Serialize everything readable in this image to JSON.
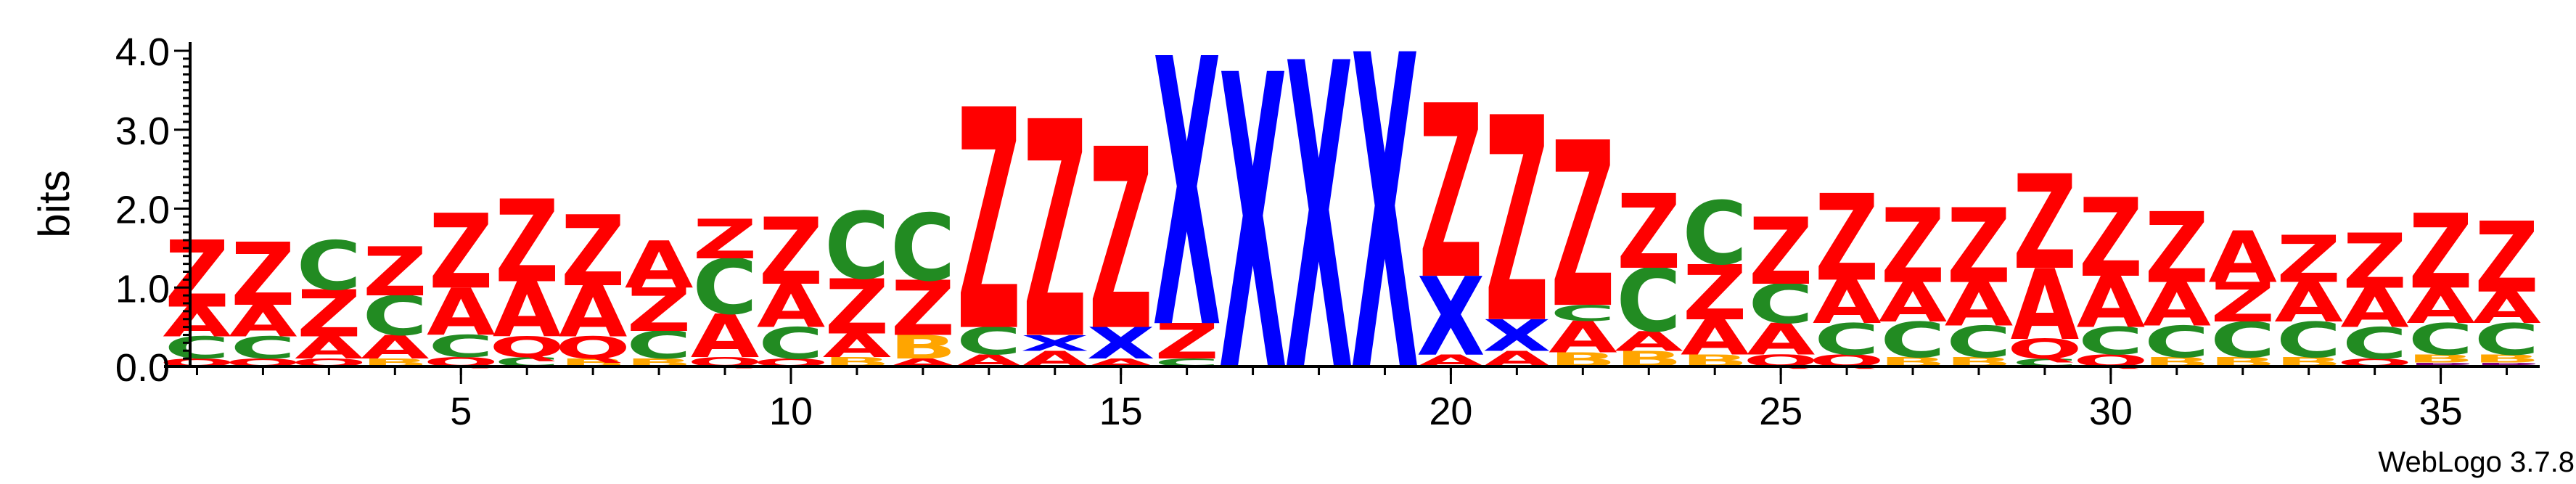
{
  "chart_data": {
    "type": "sequence-logo",
    "ylabel": "bits",
    "ylim": [
      0,
      4.0
    ],
    "y_ticks": [
      "0.0",
      "1.0",
      "2.0",
      "3.0",
      "4.0"
    ],
    "x_ticks": [
      "5",
      "10",
      "15",
      "20",
      "25",
      "30",
      "35"
    ],
    "x_tick_positions": [
      5,
      10,
      15,
      20,
      25,
      30,
      35
    ],
    "positions": [
      1,
      36
    ],
    "colors": {
      "Z": "#ff0000",
      "A": "#ff0000",
      "C": "#228b22",
      "Q": "#ff0000",
      "X": "#0000ff",
      "B": "#ffa500",
      "P": "#800080"
    },
    "stacks": [
      [
        [
          "Q",
          0.1
        ],
        [
          "C",
          0.28
        ],
        [
          "A",
          0.38
        ],
        [
          "Z",
          0.85
        ]
      ],
      [
        [
          "Q",
          0.1
        ],
        [
          "C",
          0.28
        ],
        [
          "A",
          0.4
        ],
        [
          "Z",
          0.8
        ]
      ],
      [
        [
          "Q",
          0.1
        ],
        [
          "A",
          0.28
        ],
        [
          "Z",
          0.6
        ],
        [
          "C",
          0.62
        ]
      ],
      [
        [
          "B",
          0.1
        ],
        [
          "A",
          0.3
        ],
        [
          "C",
          0.5
        ],
        [
          "Z",
          0.62
        ]
      ],
      [
        [
          "Q",
          0.12
        ],
        [
          "C",
          0.28
        ],
        [
          "A",
          0.6
        ],
        [
          "Z",
          0.95
        ]
      ],
      [
        [
          "C",
          0.12
        ],
        [
          "Q",
          0.26
        ],
        [
          "A",
          0.7
        ],
        [
          "Z",
          1.05
        ]
      ],
      [
        [
          "B",
          0.1
        ],
        [
          "Q",
          0.28
        ],
        [
          "A",
          0.65
        ],
        [
          "Z",
          0.9
        ]
      ],
      [
        [
          "B",
          0.1
        ],
        [
          "C",
          0.35
        ],
        [
          "Z",
          0.55
        ],
        [
          "A",
          0.6
        ]
      ],
      [
        [
          "Q",
          0.12
        ],
        [
          "A",
          0.55
        ],
        [
          "C",
          0.7
        ],
        [
          "Z",
          0.5
        ]
      ],
      [
        [
          "Q",
          0.1
        ],
        [
          "C",
          0.4
        ],
        [
          "A",
          0.55
        ],
        [
          "Z",
          0.85
        ]
      ],
      [
        [
          "B",
          0.12
        ],
        [
          "A",
          0.3
        ],
        [
          "Z",
          0.7
        ],
        [
          "C",
          0.85
        ]
      ],
      [
        [
          "A",
          0.1
        ],
        [
          "B",
          0.3
        ],
        [
          "Z",
          0.7
        ],
        [
          "C",
          0.85
        ]
      ],
      [
        [
          "A",
          0.15
        ],
        [
          "C",
          0.35
        ],
        [
          "Z",
          2.8
        ]
      ],
      [
        [
          "A",
          0.2
        ],
        [
          "X",
          0.2
        ],
        [
          "Z",
          2.75
        ]
      ],
      [
        [
          "A",
          0.1
        ],
        [
          "X",
          0.4
        ],
        [
          "Z",
          2.3
        ]
      ],
      [
        [
          "C",
          0.1
        ],
        [
          "Z",
          0.45
        ],
        [
          "X",
          3.4
        ]
      ],
      [
        [
          "X",
          3.75
        ]
      ],
      [
        [
          "X",
          3.9
        ]
      ],
      [
        [
          "X",
          4.0
        ]
      ],
      [
        [
          "A",
          0.15
        ],
        [
          "X",
          1.0
        ],
        [
          "Z",
          2.2
        ]
      ],
      [
        [
          "A",
          0.2
        ],
        [
          "X",
          0.4
        ],
        [
          "Z",
          2.6
        ]
      ],
      [
        [
          "B",
          0.18
        ],
        [
          "A",
          0.4
        ],
        [
          "C",
          0.2
        ],
        [
          "Z",
          2.1
        ]
      ],
      [
        [
          "B",
          0.2
        ],
        [
          "A",
          0.25
        ],
        [
          "C",
          0.8
        ],
        [
          "Z",
          0.95
        ]
      ],
      [
        [
          "B",
          0.15
        ],
        [
          "A",
          0.45
        ],
        [
          "Z",
          0.7
        ],
        [
          "C",
          0.8
        ]
      ],
      [
        [
          "Q",
          0.15
        ],
        [
          "A",
          0.4
        ],
        [
          "C",
          0.5
        ],
        [
          "Z",
          0.85
        ]
      ],
      [
        [
          "Q",
          0.15
        ],
        [
          "C",
          0.4
        ],
        [
          "A",
          0.55
        ],
        [
          "Z",
          1.1
        ]
      ],
      [
        [
          "B",
          0.12
        ],
        [
          "C",
          0.45
        ],
        [
          "A",
          0.5
        ],
        [
          "Z",
          0.95
        ]
      ],
      [
        [
          "B",
          0.12
        ],
        [
          "C",
          0.4
        ],
        [
          "A",
          0.55
        ],
        [
          "Z",
          0.95
        ]
      ],
      [
        [
          "C",
          0.1
        ],
        [
          "Q",
          0.25
        ],
        [
          "A",
          0.9
        ],
        [
          "Z",
          1.2
        ]
      ],
      [
        [
          "Q",
          0.15
        ],
        [
          "C",
          0.35
        ],
        [
          "A",
          0.65
        ],
        [
          "Z",
          1.0
        ]
      ],
      [
        [
          "B",
          0.12
        ],
        [
          "C",
          0.4
        ],
        [
          "A",
          0.55
        ],
        [
          "Z",
          0.9
        ]
      ],
      [
        [
          "B",
          0.12
        ],
        [
          "C",
          0.45
        ],
        [
          "Z",
          0.5
        ],
        [
          "A",
          0.65
        ]
      ],
      [
        [
          "B",
          0.12
        ],
        [
          "C",
          0.45
        ],
        [
          "A",
          0.5
        ],
        [
          "Z",
          0.6
        ]
      ],
      [
        [
          "Q",
          0.1
        ],
        [
          "C",
          0.4
        ],
        [
          "A",
          0.5
        ],
        [
          "Z",
          0.7
        ]
      ],
      [
        [
          "P",
          0.05
        ],
        [
          "B",
          0.1
        ],
        [
          "C",
          0.4
        ],
        [
          "A",
          0.45
        ],
        [
          "Z",
          0.95
        ]
      ],
      [
        [
          "P",
          0.05
        ],
        [
          "B",
          0.1
        ],
        [
          "C",
          0.4
        ],
        [
          "A",
          0.4
        ],
        [
          "Z",
          0.9
        ]
      ]
    ]
  },
  "footer": {
    "text": "WebLogo 3.7.8"
  }
}
